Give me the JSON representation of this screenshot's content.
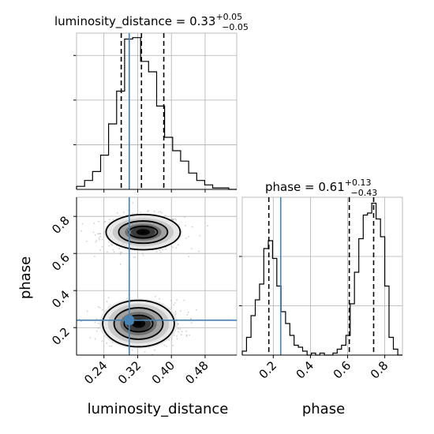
{
  "chart_data": {
    "type": "corner",
    "parameters": [
      "luminosity_distance",
      "phase"
    ],
    "colors": {
      "truth": "#4682b4",
      "density_levels": [
        "#e5e5e5",
        "#c4c4c4",
        "#9b9b9b",
        "#6a6a6a",
        "#303030",
        "#000000"
      ],
      "scatter": "#a8a8a8"
    },
    "titles": {
      "luminosity_distance": {
        "name": "luminosity_distance",
        "median": "0.33",
        "plus": "+0.05",
        "minus": "−0.05"
      },
      "phase": {
        "name": "phase",
        "median": "0.61",
        "plus": "+0.13",
        "minus": "−0.43"
      }
    },
    "axis_labels": {
      "x0": "luminosity_distance",
      "x1": "phase",
      "y1": "phase"
    },
    "xlim_luminosity_distance": [
      0.175,
      0.555
    ],
    "xlim_phase": [
      0.033,
      0.895
    ],
    "ylim_phase": [
      0.052,
      0.903
    ],
    "ticks_luminosity_distance": [
      {
        "value": 0.24,
        "label": "0.24"
      },
      {
        "value": 0.32,
        "label": "0.32"
      },
      {
        "value": 0.4,
        "label": "0.40"
      },
      {
        "value": 0.48,
        "label": "0.48"
      }
    ],
    "ticks_phase": [
      {
        "value": 0.2,
        "label": "0.2"
      },
      {
        "value": 0.4,
        "label": "0.4"
      },
      {
        "value": 0.6,
        "label": "0.6"
      },
      {
        "value": 0.8,
        "label": "0.8"
      }
    ],
    "hist_luminosity_distance": {
      "edges": [
        0.175,
        0.194,
        0.213,
        0.232,
        0.251,
        0.27,
        0.289,
        0.308,
        0.327,
        0.346,
        0.365,
        0.384,
        0.403,
        0.422,
        0.441,
        0.46,
        0.479,
        0.498,
        0.517,
        0.536,
        0.555
      ],
      "counts": [
        2,
        6,
        12,
        23,
        44,
        66,
        101,
        102,
        86,
        79,
        56,
        35,
        26,
        19,
        11,
        6,
        3,
        1,
        1,
        0
      ],
      "ymax": 105,
      "yticks": [
        30,
        60,
        90
      ],
      "quantiles": [
        0.281,
        0.329,
        0.382
      ],
      "truth": 0.3
    },
    "hist_phase": {
      "edges": [
        0.033,
        0.056,
        0.08,
        0.103,
        0.126,
        0.149,
        0.173,
        0.196,
        0.219,
        0.242,
        0.266,
        0.289,
        0.312,
        0.335,
        0.358,
        0.382,
        0.405,
        0.428,
        0.451,
        0.475,
        0.498,
        0.521,
        0.544,
        0.567,
        0.591,
        0.614,
        0.637,
        0.66,
        0.684,
        0.707,
        0.73,
        0.753,
        0.777,
        0.8,
        0.823,
        0.846,
        0.87,
        0.895
      ],
      "counts": [
        2,
        9,
        20,
        28,
        36,
        54,
        58,
        49,
        35,
        22,
        16,
        10,
        5,
        4,
        2,
        0,
        1,
        0,
        1,
        0,
        0,
        1,
        3,
        5,
        10,
        26,
        42,
        59,
        71,
        72,
        77,
        69,
        60,
        35,
        9,
        3,
        0
      ],
      "ymax": 80,
      "yticks": [
        25,
        50
      ],
      "quantiles": [
        0.176,
        0.609,
        0.74
      ],
      "truth": 0.24
    },
    "density_blobs": [
      {
        "ld": 0.33,
        "phase": 0.71,
        "sd_ld": 0.045,
        "sd_phase": 0.055,
        "weight": 1.0
      },
      {
        "ld": 0.33,
        "phase": 0.22,
        "sd_ld": 0.045,
        "sd_phase": 0.07,
        "weight": 0.85
      }
    ],
    "contours": [
      {
        "cx": 0.333,
        "cy": 0.715,
        "rx": [
          0.034,
          0.058,
          0.088
        ],
        "ry": [
          0.032,
          0.06,
          0.095
        ]
      },
      {
        "cx": 0.322,
        "cy": 0.222,
        "rx": [
          0.034,
          0.058,
          0.085
        ],
        "ry": [
          0.045,
          0.085,
          0.125
        ]
      }
    ],
    "truth_point": {
      "luminosity_distance": 0.3,
      "phase": 0.24
    }
  }
}
